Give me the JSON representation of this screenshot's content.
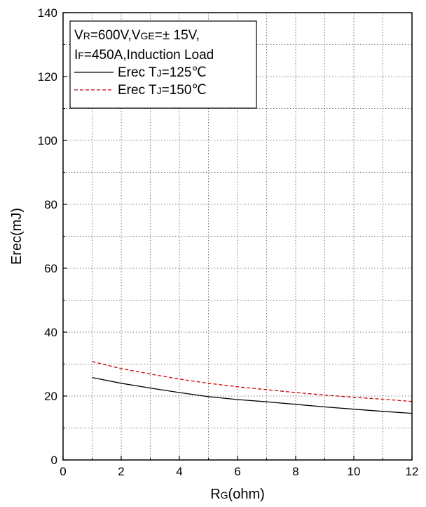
{
  "chart_data": {
    "type": "line",
    "xlabel_main": "R",
    "xlabel_sub": "G",
    "xlabel_rest": "(ohm)",
    "ylabel": "Erec(mJ)",
    "xlim": [
      0,
      12
    ],
    "ylim": [
      0,
      140
    ],
    "x_ticks": [
      0,
      2,
      4,
      6,
      8,
      10,
      12
    ],
    "y_ticks": [
      0,
      20,
      40,
      60,
      80,
      100,
      120,
      140
    ],
    "grid": true,
    "grid_style": "dotted",
    "legend_placement": "top-left",
    "conditions_line1": {
      "p1": "V",
      "p1s": "R",
      "p2": "=600V,V",
      "p2s": "GE",
      "p3": "=± 15V,"
    },
    "conditions_line2": {
      "p1": "I",
      "p1s": "F",
      "p2": "=450A,Induction Load"
    },
    "series": [
      {
        "name_a": "Erec T",
        "name_sub": "J",
        "name_b": "=125℃",
        "color": "#000000",
        "dash": "solid",
        "x": [
          1,
          2,
          3,
          4,
          5,
          6,
          7,
          8,
          9,
          10,
          11,
          12
        ],
        "y": [
          25.8,
          24.0,
          22.5,
          21.1,
          19.8,
          18.9,
          18.2,
          17.4,
          16.6,
          15.9,
          15.2,
          14.6
        ]
      },
      {
        "name_a": "Erec T",
        "name_sub": "J",
        "name_b": "=150℃",
        "color": "#cc0000",
        "dash": "dashed",
        "x": [
          1,
          2,
          3,
          4,
          5,
          6,
          7,
          8,
          9,
          10,
          11,
          12
        ],
        "y": [
          30.8,
          28.6,
          26.9,
          25.3,
          24.0,
          22.9,
          22.0,
          21.1,
          20.3,
          19.6,
          19.0,
          18.3
        ]
      }
    ]
  }
}
